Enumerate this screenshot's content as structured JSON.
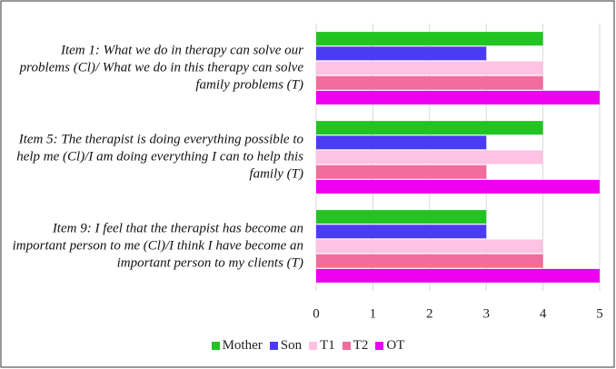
{
  "chart_data": {
    "type": "barh",
    "categories": [
      "Item 1: What we do in therapy can solve our problems (Cl)/ What we do in this therapy can solve family problems (T)",
      "Item 5:  The therapist is doing everything possible to help me (Cl)/I am doing everything I can to help this family (T)",
      "Item 9: I feel that the therapist has become an important person to me (Cl)/I think I have become an important person to my clients (T)"
    ],
    "series": [
      {
        "name": "Mother",
        "color": "#22c422",
        "values": [
          4,
          4,
          3
        ]
      },
      {
        "name": "Son",
        "color": "#4a3cf0",
        "values": [
          3,
          3,
          3
        ]
      },
      {
        "name": "T1",
        "color": "#ffc2e2",
        "values": [
          4,
          4,
          4
        ]
      },
      {
        "name": "T2",
        "color": "#f26c9c",
        "values": [
          4,
          3,
          4
        ]
      },
      {
        "name": "OT",
        "color": "#ee00ee",
        "values": [
          5,
          5,
          5
        ]
      }
    ],
    "xlim": [
      0,
      5
    ],
    "xticks": [
      0,
      1,
      2,
      3,
      4,
      5
    ],
    "grid": true,
    "legend": "bottom"
  }
}
